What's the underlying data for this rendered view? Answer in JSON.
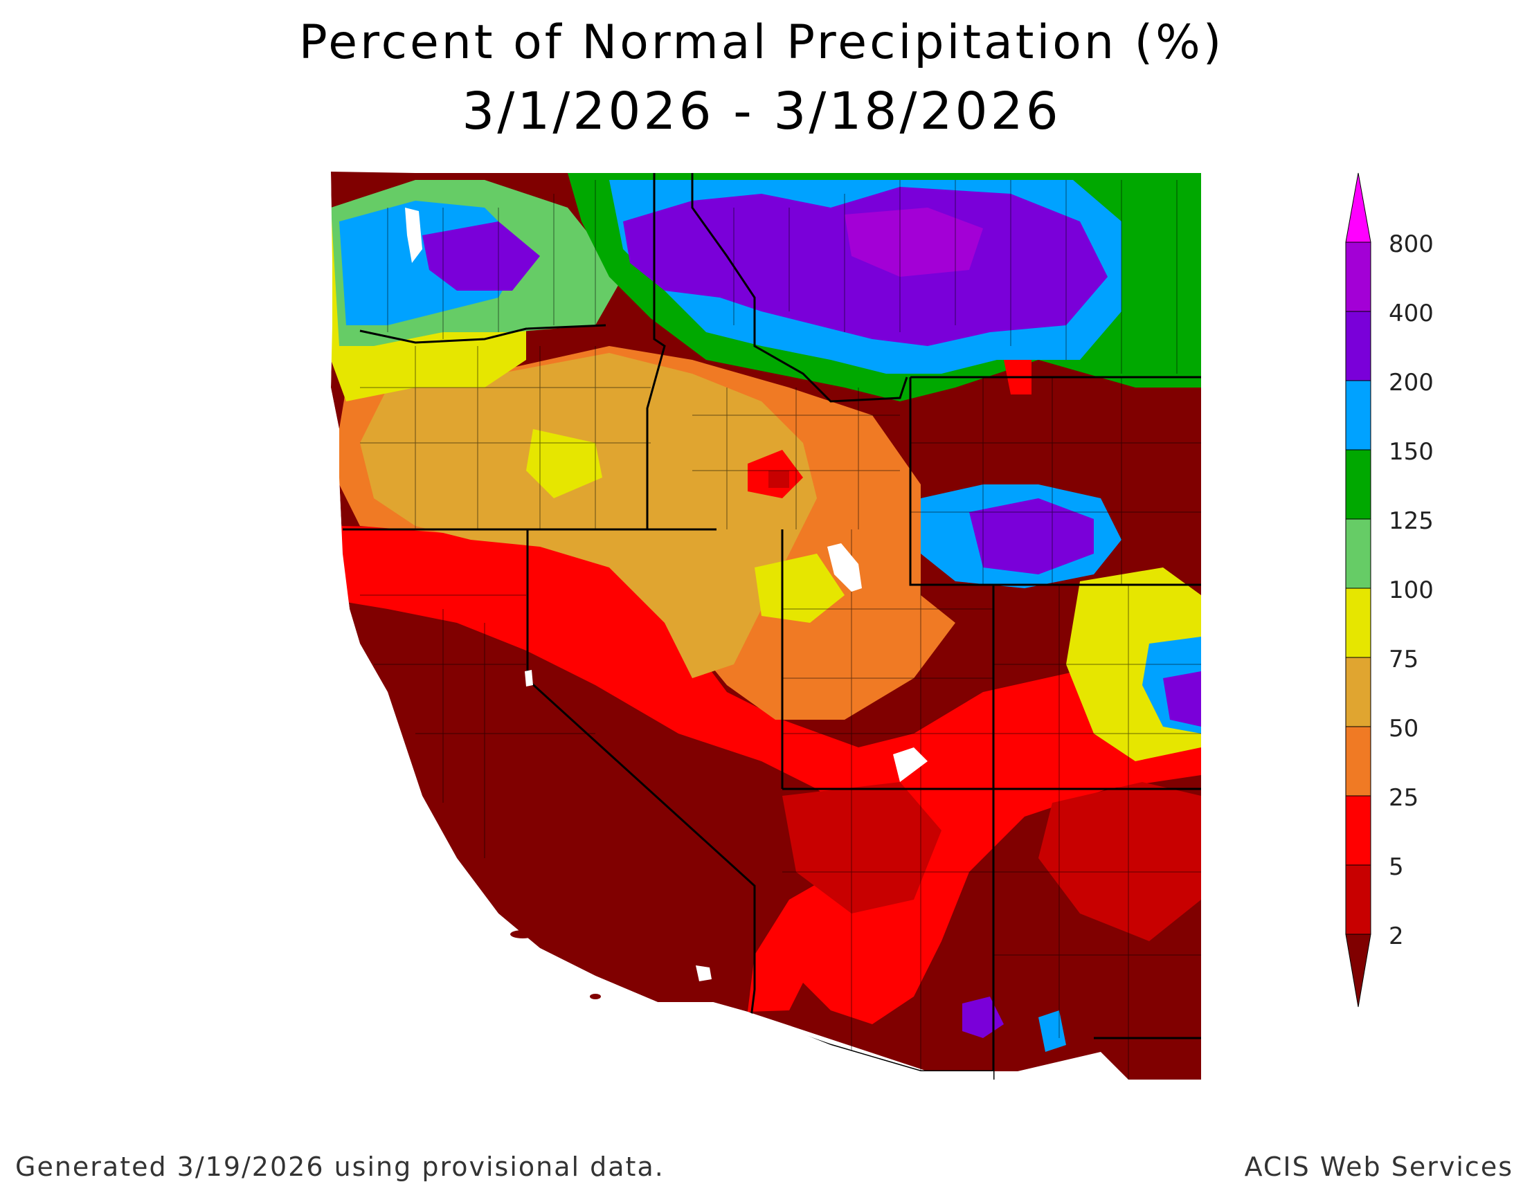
{
  "header": {
    "title": "Percent of Normal Precipitation (%)",
    "date_range": "3/1/2026 - 3/18/2026"
  },
  "footer": {
    "generated": "Generated 3/19/2026 using provisional data.",
    "credit": "ACIS Web Services"
  },
  "legend": {
    "labels": [
      "800",
      "400",
      "200",
      "150",
      "125",
      "100",
      "75",
      "50",
      "25",
      "5",
      "2"
    ],
    "colors": {
      "over_800": "#ff00ff",
      "400_800": "#a300d6",
      "200_400": "#7a00d9",
      "150_200": "#00a2ff",
      "125_150": "#00a800",
      "100_125": "#66cc66",
      "75_100": "#e6e600",
      "50_75": "#e0a530",
      "25_50": "#f07a24",
      "5_25": "#ff0000",
      "2_5": "#c80000",
      "under_2": "#800000"
    }
  }
}
